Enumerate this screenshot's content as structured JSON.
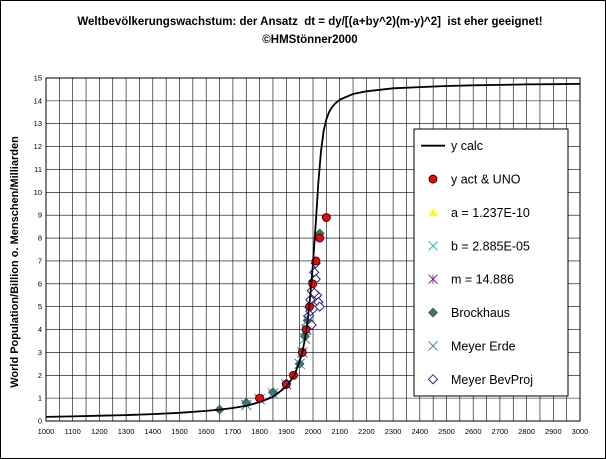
{
  "title": "Weltbevölkerungswachstum: der Ansatz  dt = dy/[(a+by^2)(m-y)^2]  ist eher geeignet! ©HMStönner2000",
  "ylabel": "World Population/Billion  o.  Menschen/Milliarden",
  "chart_data": {
    "type": "scatter",
    "title": "Weltbevölkerungswachstum: der Ansatz  dt = dy/[(a+by^2)(m-y)^2]  ist eher geeignet! ©HMStönner2000",
    "xlabel": "",
    "ylabel": "World Population/Billion  o.  Menschen/Milliarden",
    "xlim": [
      1000,
      3000
    ],
    "ylim": [
      0,
      15
    ],
    "x_ticks": [
      1000,
      1050,
      1100,
      1150,
      1200,
      1250,
      1300,
      1350,
      1400,
      1450,
      1500,
      1550,
      1600,
      1650,
      1700,
      1750,
      1800,
      1850,
      1900,
      1950,
      2000,
      2050,
      2100,
      2150,
      2200,
      2250,
      2300,
      2350,
      2400,
      2450,
      2500,
      2550,
      2600,
      2650,
      2700,
      2750,
      2800,
      2850,
      2900,
      2950,
      3000
    ],
    "x_tick_labels": [
      1000,
      1100,
      1200,
      1300,
      1400,
      1500,
      1600,
      1700,
      1800,
      1900,
      2000,
      2100,
      2200,
      2300,
      2400,
      2500,
      2600,
      2700,
      2800,
      2900,
      3000
    ],
    "y_ticks": [
      0,
      1,
      2,
      3,
      4,
      5,
      6,
      7,
      8,
      9,
      10,
      11,
      12,
      13,
      14,
      15
    ],
    "grid": true,
    "legend_position": "right",
    "series": [
      {
        "name": "y calc",
        "kind": "line",
        "color": "#000000",
        "x": [
          1000,
          1100,
          1200,
          1300,
          1400,
          1500,
          1600,
          1650,
          1700,
          1750,
          1800,
          1850,
          1900,
          1930,
          1950,
          1960,
          1970,
          1980,
          1990,
          2000,
          2005,
          2010,
          2015,
          2020,
          2030,
          2040,
          2050,
          2060,
          2070,
          2080,
          2090,
          2100,
          2150,
          2200,
          2300,
          2400,
          2500,
          2600,
          2700,
          2800,
          2900,
          3000
        ],
        "y": [
          0.18,
          0.2,
          0.23,
          0.26,
          0.3,
          0.36,
          0.44,
          0.5,
          0.57,
          0.67,
          0.82,
          1.05,
          1.5,
          2.0,
          2.6,
          3.0,
          3.6,
          4.4,
          5.5,
          6.9,
          7.7,
          8.6,
          9.5,
          10.4,
          11.8,
          12.7,
          13.2,
          13.5,
          13.7,
          13.85,
          13.95,
          14.05,
          14.3,
          14.42,
          14.55,
          14.6,
          14.65,
          14.68,
          14.7,
          14.72,
          14.73,
          14.74
        ]
      },
      {
        "name": "y act & UNO",
        "kind": "marker",
        "marker": "circle",
        "color": "#ff0000",
        "x": [
          1800,
          1900,
          1927,
          1960,
          1974,
          1987,
          1999,
          2011,
          2025,
          2050
        ],
        "y": [
          1.0,
          1.6,
          2.0,
          3.0,
          4.0,
          5.0,
          6.0,
          7.0,
          8.0,
          8.9
        ]
      },
      {
        "name": "a =  1.237E-10",
        "kind": "marker",
        "marker": "triangle",
        "color": "#ffff00",
        "x": [],
        "y": []
      },
      {
        "name": "b =  2.885E-05",
        "kind": "marker",
        "marker": "x-small",
        "color": "#00c0c0",
        "x": [],
        "y": []
      },
      {
        "name": "m =  14.886",
        "kind": "marker",
        "marker": "star",
        "color": "#800080",
        "x": [],
        "y": []
      },
      {
        "name": "Brockhaus",
        "kind": "marker",
        "marker": "diamond-filled",
        "color": "#3b7a57",
        "x": [
          1650,
          1750,
          1800,
          1850,
          1900,
          1950,
          1960,
          1970,
          1980,
          1990,
          2000,
          2025
        ],
        "y": [
          0.5,
          0.8,
          1.0,
          1.26,
          1.65,
          2.5,
          3.0,
          3.7,
          4.4,
          5.3,
          6.1,
          8.2
        ]
      },
      {
        "name": "Meyer Erde",
        "kind": "marker",
        "marker": "x",
        "color": "#2e7bbf",
        "x": [
          1750,
          1800,
          1850,
          1900,
          1950,
          1960,
          1970,
          1975,
          1980,
          1985
        ],
        "y": [
          0.7,
          0.95,
          1.2,
          1.6,
          2.5,
          3.0,
          3.6,
          4.0,
          4.4,
          4.8
        ]
      },
      {
        "name": "Meyer BevProj",
        "kind": "marker",
        "marker": "diamond-open",
        "color": "#2020a0",
        "x": [
          1990,
          1995,
          2000,
          2005,
          2010,
          2015,
          2020,
          2025,
          1985,
          1990,
          1995,
          2000,
          2005,
          2010
        ],
        "y": [
          5.3,
          5.7,
          6.1,
          6.5,
          6.9,
          5.5,
          5.2,
          5.0,
          4.6,
          4.8,
          4.2,
          4.9,
          5.6,
          6.2
        ]
      }
    ]
  }
}
